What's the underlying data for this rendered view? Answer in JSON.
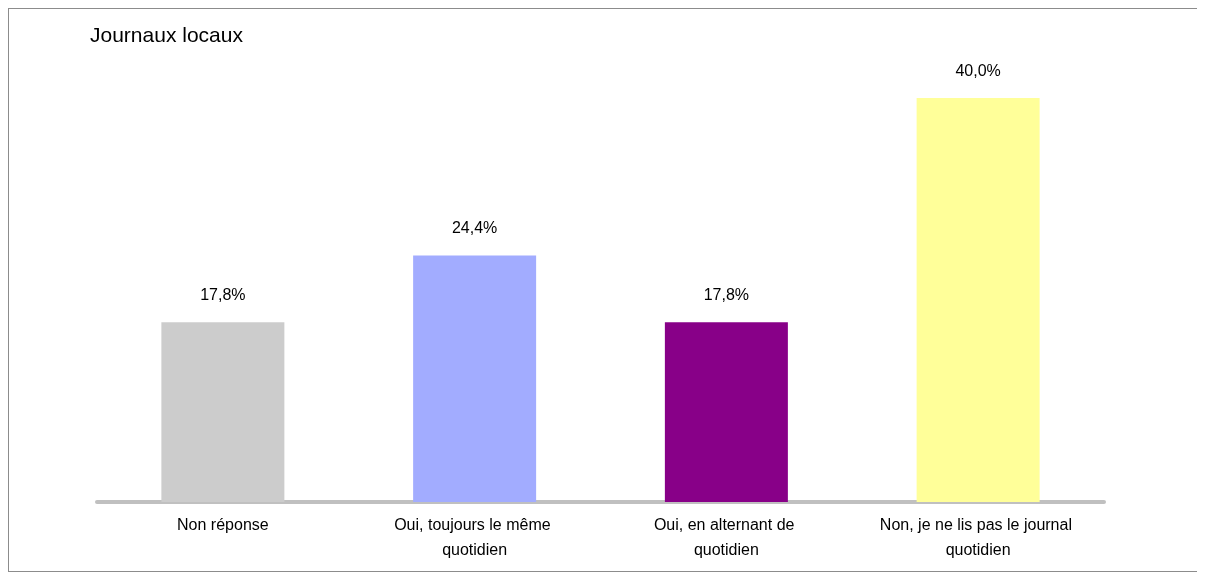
{
  "chart_data": {
    "type": "bar",
    "title": "Journaux locaux",
    "categories": [
      "Non réponse",
      "Oui, toujours le même quotidien",
      "Oui, en alternant de quotidien",
      "Non, je ne lis pas le journal quotidien"
    ],
    "values": [
      17.8,
      24.4,
      17.8,
      40.0
    ],
    "colors": [
      "#cccccc",
      "#a2acff",
      "#880088",
      "#ffff99"
    ],
    "value_labels": [
      "17,8%",
      "24,4%",
      "17,8%",
      "40,0%"
    ],
    "tick_labels": "x"
  }
}
